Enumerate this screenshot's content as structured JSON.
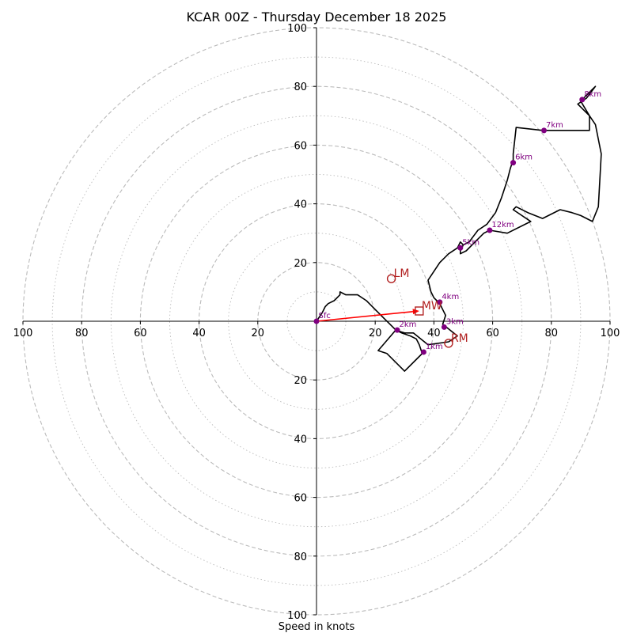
{
  "chart_data": {
    "type": "hodograph",
    "title": "KCAR 00Z - Thursday December 18 2025",
    "xlabel": "Speed in knots",
    "ylabel": "",
    "axis_range": [
      -100,
      100
    ],
    "ring_step_major": 20,
    "ring_step_minor": 10,
    "tick_labels": {
      "right": [
        "20",
        "40",
        "60",
        "80",
        "100"
      ],
      "left": [
        "20",
        "40",
        "60",
        "80",
        "100"
      ],
      "up": [
        "20",
        "40",
        "60",
        "80",
        "100"
      ],
      "down": [
        "20",
        "40",
        "60",
        "80",
        "100"
      ]
    },
    "colors": {
      "trace": "#000000",
      "height_markers": "#800080",
      "motion_markers": "#b22222",
      "mean_wind_vector": "#ff0000",
      "rings": "#bbbbbb"
    },
    "trace": [
      [
        0,
        0
      ],
      [
        2,
        3
      ],
      [
        3,
        5
      ],
      [
        4,
        6
      ],
      [
        6,
        7
      ],
      [
        8,
        9
      ],
      [
        8,
        10
      ],
      [
        10,
        9
      ],
      [
        14,
        9
      ],
      [
        17,
        7
      ],
      [
        20,
        4
      ],
      [
        23,
        1
      ],
      [
        25,
        -1
      ],
      [
        27,
        -3
      ],
      [
        29,
        -4
      ],
      [
        32,
        -5
      ],
      [
        34,
        -6
      ],
      [
        35,
        -8
      ],
      [
        36,
        -11
      ],
      [
        35,
        -12
      ],
      [
        30,
        -17
      ],
      [
        24,
        -11
      ],
      [
        21,
        -10
      ],
      [
        27,
        -3
      ],
      [
        30,
        -4
      ],
      [
        33,
        -4
      ],
      [
        38,
        -8
      ],
      [
        45,
        -7
      ],
      [
        48,
        -5
      ],
      [
        43,
        -1
      ],
      [
        44,
        2
      ],
      [
        43,
        4
      ],
      [
        42,
        6
      ],
      [
        40,
        8
      ],
      [
        39,
        10
      ],
      [
        38,
        14
      ],
      [
        40,
        17
      ],
      [
        42,
        20
      ],
      [
        45,
        23
      ],
      [
        48,
        25
      ],
      [
        49,
        27
      ],
      [
        50,
        26
      ],
      [
        49,
        24
      ],
      [
        49,
        23
      ],
      [
        51,
        24
      ],
      [
        54,
        27
      ],
      [
        57,
        30
      ],
      [
        59,
        31
      ],
      [
        65,
        30
      ],
      [
        73,
        34
      ],
      [
        67,
        38
      ],
      [
        68,
        39
      ],
      [
        72,
        37
      ],
      [
        77,
        35
      ],
      [
        83,
        38
      ],
      [
        87,
        37
      ],
      [
        90,
        36
      ],
      [
        94,
        34
      ],
      [
        96,
        39
      ],
      [
        97,
        57
      ],
      [
        95,
        67
      ],
      [
        93,
        70
      ],
      [
        91,
        72
      ],
      [
        89,
        74
      ],
      [
        92,
        76
      ],
      [
        95,
        80
      ],
      [
        93,
        78
      ],
      [
        90,
        75
      ],
      [
        93,
        70
      ],
      [
        93,
        65
      ],
      [
        77,
        65
      ],
      [
        68,
        66
      ],
      [
        67,
        57
      ],
      [
        67,
        55
      ],
      [
        66,
        52
      ],
      [
        65,
        48
      ],
      [
        63,
        42
      ],
      [
        61,
        37
      ],
      [
        58,
        33
      ],
      [
        55,
        31
      ],
      [
        52,
        27
      ],
      [
        50,
        26
      ]
    ],
    "height_markers": [
      {
        "label": "Sfc",
        "u": 0,
        "v": 0
      },
      {
        "label": "1km",
        "u": 36.5,
        "v": -10.5
      },
      {
        "label": "2km",
        "u": 27.5,
        "v": -3
      },
      {
        "label": "3km",
        "u": 43.5,
        "v": -2
      },
      {
        "label": "4km",
        "u": 42,
        "v": 6.5
      },
      {
        "label": "5km",
        "u": 49,
        "v": 25
      },
      {
        "label": "6km",
        "u": 67,
        "v": 54
      },
      {
        "label": "7km",
        "u": 77.5,
        "v": 65
      },
      {
        "label": "8km",
        "u": 90.5,
        "v": 75.5
      },
      {
        "label": "12km",
        "u": 59,
        "v": 31
      }
    ],
    "storm_motions": [
      {
        "label": "LM",
        "u": 25.5,
        "v": 14.5,
        "marker": "circle"
      },
      {
        "label": "RM",
        "u": 45,
        "v": -7.5,
        "marker": "circle"
      },
      {
        "label": "MW",
        "u": 35,
        "v": 3.5,
        "marker": "square"
      }
    ],
    "mean_wind_vector": {
      "from": [
        0,
        0
      ],
      "to": [
        35,
        3.5
      ]
    }
  }
}
